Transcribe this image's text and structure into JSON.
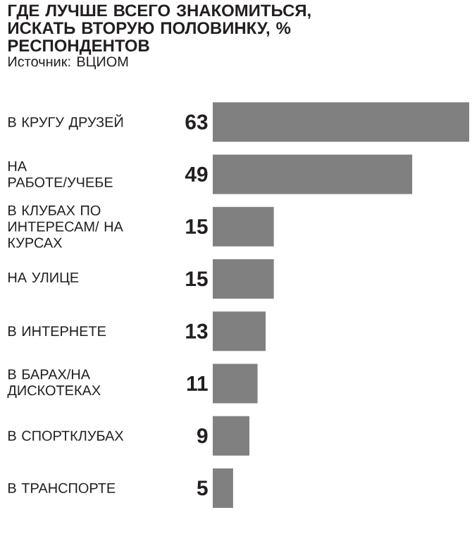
{
  "chart_data": {
    "type": "bar",
    "orientation": "horizontal",
    "title": "ГДЕ ЛУЧШЕ ВСЕГО ЗНАКОМИТЬСЯ, ИСКАТЬ ВТОРУЮ ПОЛОВИНКУ, % РЕСПОНДЕНТОВ",
    "annotations": [
      "Источник: ВЦИОМ"
    ],
    "categories": [
      "В КРУГУ ДРУЗЕЙ",
      "НА РАБОТЕ/УЧЕБЕ",
      "В КЛУБАХ ПО ИНТЕРЕСАМ/ НА КУРСАХ",
      "НА УЛИЦЕ",
      "В ИНТЕРНЕТЕ",
      "В БАРАХ/НА ДИСКОТЕКАХ",
      "В СПОРТКЛУБАХ",
      "В ТРАНСПОРТЕ"
    ],
    "values": [
      63,
      49,
      15,
      15,
      13,
      11,
      9,
      5
    ],
    "color": "#808080",
    "data_labels": true
  }
}
